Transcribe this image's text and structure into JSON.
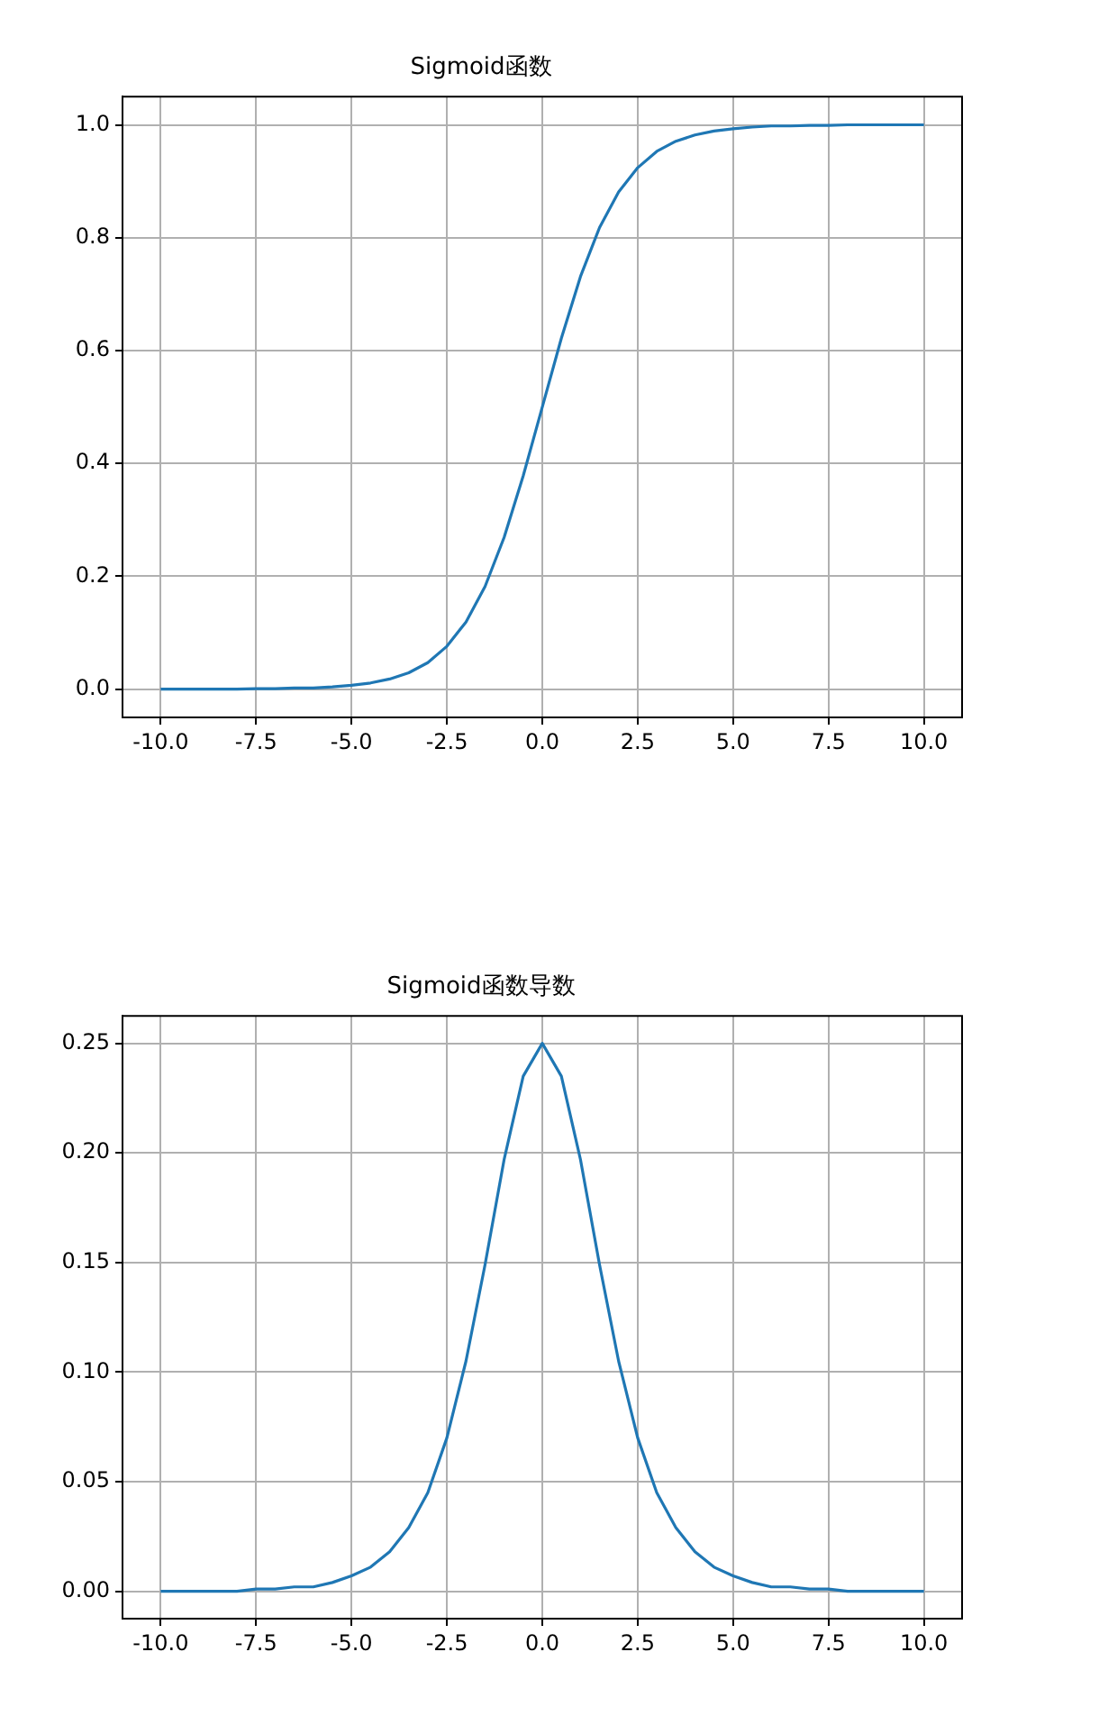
{
  "chart_data": [
    {
      "type": "line",
      "title": "Sigmoid函数",
      "color": "#1f77b4",
      "grid": true,
      "x": [
        -10,
        -9.5,
        -9,
        -8.5,
        -8,
        -7.5,
        -7,
        -6.5,
        -6,
        -5.5,
        -5,
        -4.5,
        -4,
        -3.5,
        -3,
        -2.5,
        -2,
        -1.5,
        -1,
        -0.5,
        0,
        0.5,
        1,
        1.5,
        2,
        2.5,
        3,
        3.5,
        4,
        4.5,
        5,
        5.5,
        6,
        6.5,
        7,
        7.5,
        8,
        8.5,
        9,
        9.5,
        10
      ],
      "values": [
        0.0,
        0.0,
        0.0,
        0.0,
        0.0,
        0.001,
        0.001,
        0.002,
        0.002,
        0.004,
        0.007,
        0.011,
        0.018,
        0.029,
        0.047,
        0.076,
        0.119,
        0.182,
        0.269,
        0.378,
        0.5,
        0.622,
        0.731,
        0.818,
        0.881,
        0.924,
        0.953,
        0.971,
        0.982,
        0.989,
        0.993,
        0.996,
        0.998,
        0.998,
        0.999,
        0.999,
        1.0,
        1.0,
        1.0,
        1.0,
        1.0
      ],
      "xlim": [
        -11,
        11
      ],
      "ylim": [
        -0.05,
        1.05
      ],
      "xticks": [
        {
          "value": -10,
          "label": "-10.0"
        },
        -7.5,
        {
          "value": -5,
          "label": "-5.0"
        },
        -2.5,
        {
          "value": 0,
          "label": "0.0"
        },
        2.5,
        {
          "value": 5,
          "label": "5.0"
        },
        7.5,
        {
          "value": 10,
          "label": "10.0"
        }
      ],
      "yticks": [
        {
          "value": 0,
          "label": "0.0"
        },
        0.2,
        0.4,
        0.6,
        0.8,
        {
          "value": 1,
          "label": "1.0"
        }
      ]
    },
    {
      "type": "line",
      "title": "Sigmoid函数导数",
      "color": "#1f77b4",
      "grid": true,
      "x": [
        -10,
        -9.5,
        -9,
        -8.5,
        -8,
        -7.5,
        -7,
        -6.5,
        -6,
        -5.5,
        -5,
        -4.5,
        -4,
        -3.5,
        -3,
        -2.5,
        -2,
        -1.5,
        -1,
        -0.5,
        0,
        0.5,
        1,
        1.5,
        2,
        2.5,
        3,
        3.5,
        4,
        4.5,
        5,
        5.5,
        6,
        6.5,
        7,
        7.5,
        8,
        8.5,
        9,
        9.5,
        10
      ],
      "values": [
        0.0,
        0.0,
        0.0,
        0.0,
        0.0,
        0.001,
        0.001,
        0.002,
        0.002,
        0.004,
        0.007,
        0.011,
        0.018,
        0.029,
        0.045,
        0.07,
        0.105,
        0.149,
        0.197,
        0.235,
        0.25,
        0.235,
        0.197,
        0.149,
        0.105,
        0.07,
        0.045,
        0.029,
        0.018,
        0.011,
        0.007,
        0.004,
        0.002,
        0.002,
        0.001,
        0.001,
        0.0,
        0.0,
        0.0,
        0.0,
        0.0
      ],
      "xlim": [
        -11,
        11
      ],
      "ylim": [
        -0.0125,
        0.2625
      ],
      "xticks": [
        {
          "value": -10,
          "label": "-10.0"
        },
        -7.5,
        {
          "value": -5,
          "label": "-5.0"
        },
        -2.5,
        {
          "value": 0,
          "label": "0.0"
        },
        2.5,
        {
          "value": 5,
          "label": "5.0"
        },
        7.5,
        {
          "value": 10,
          "label": "10.0"
        }
      ],
      "yticks": [
        {
          "value": 0,
          "label": "0.00"
        },
        0.05,
        {
          "value": 0.1,
          "label": "0.10"
        },
        0.15,
        {
          "value": 0.2,
          "label": "0.20"
        },
        0.25
      ]
    }
  ]
}
